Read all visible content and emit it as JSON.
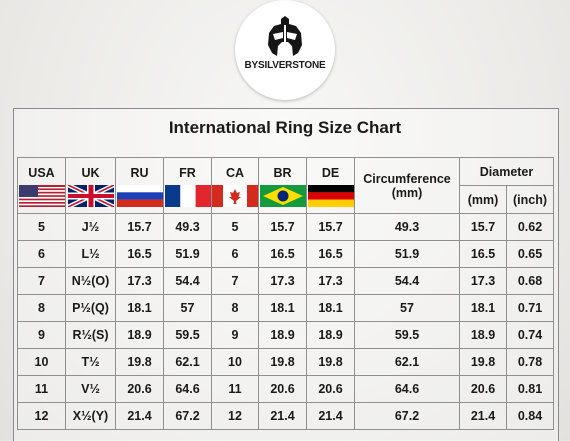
{
  "brand": "BYSILVERSTONE",
  "title": "International Ring Size Chart",
  "headers": {
    "usa": "USA",
    "uk": "UK",
    "ru": "RU",
    "fr": "FR",
    "ca": "CA",
    "br": "BR",
    "de": "DE",
    "circumference": "Circumference",
    "circumference_unit": "(mm)",
    "diameter": "Diameter",
    "diameter_mm": "(mm)",
    "diameter_inch": "(inch)"
  },
  "flags": [
    "us-flag-icon",
    "uk-flag-icon",
    "russia-flag-icon",
    "france-flag-icon",
    "canada-flag-icon",
    "brazil-flag-icon",
    "germany-flag-icon"
  ],
  "rows": [
    [
      "5",
      "J½",
      "15.7",
      "49.3",
      "5",
      "15.7",
      "15.7",
      "49.3",
      "15.7",
      "0.62"
    ],
    [
      "6",
      "L½",
      "16.5",
      "51.9",
      "6",
      "16.5",
      "16.5",
      "51.9",
      "16.5",
      "0.65"
    ],
    [
      "7",
      "N½(O)",
      "17.3",
      "54.4",
      "7",
      "17.3",
      "17.3",
      "54.4",
      "17.3",
      "0.68"
    ],
    [
      "8",
      "P½(Q)",
      "18.1",
      "57",
      "8",
      "18.1",
      "18.1",
      "57",
      "18.1",
      "0.71"
    ],
    [
      "9",
      "R½(S)",
      "18.9",
      "59.5",
      "9",
      "18.9",
      "18.9",
      "59.5",
      "18.9",
      "0.74"
    ],
    [
      "10",
      "T½",
      "19.8",
      "62.1",
      "10",
      "19.8",
      "19.8",
      "62.1",
      "19.8",
      "0.78"
    ],
    [
      "11",
      "V½",
      "20.6",
      "64.6",
      "11",
      "20.6",
      "20.6",
      "64.6",
      "20.6",
      "0.81"
    ],
    [
      "12",
      "X½(Y)",
      "21.4",
      "67.2",
      "12",
      "21.4",
      "21.4",
      "67.2",
      "21.4",
      "0.84"
    ]
  ]
}
